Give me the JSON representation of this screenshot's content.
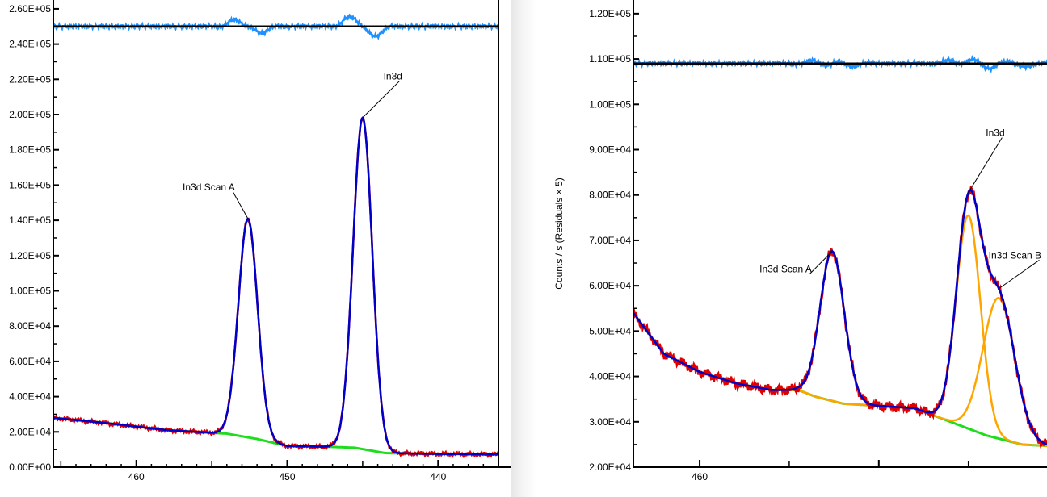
{
  "chart_data": [
    {
      "type": "line",
      "title": "",
      "xlabel": "",
      "ylabel": "",
      "x_reversed": true,
      "xlim": [
        465.5,
        436.0
      ],
      "ylim": [
        0,
        265000
      ],
      "residual_zero": 250000,
      "x_ticks": [
        460,
        450,
        440
      ],
      "y_ticks": [
        0,
        20000,
        40000,
        60000,
        80000,
        100000,
        120000,
        140000,
        160000,
        180000,
        200000,
        220000,
        240000,
        260000
      ],
      "y_tick_labels": [
        "0.00E+00",
        "2.00E+04",
        "4.00E+04",
        "6.00E+04",
        "8.00E+04",
        "1.00E+05",
        "1.20E+05",
        "1.40E+05",
        "1.60E+05",
        "1.80E+05",
        "2.00E+05",
        "2.20E+05",
        "2.40E+05",
        "2.60E+05"
      ],
      "colors": {
        "envelope": "#0000c8",
        "raw": "#e00000",
        "background": "#1fdc1f",
        "residual": "#1e90ff",
        "baseline": "#000000"
      },
      "background": [
        [
          465.5,
          28000
        ],
        [
          462,
          25000
        ],
        [
          458,
          21000
        ],
        [
          455,
          19500
        ],
        [
          454,
          19000
        ],
        [
          452,
          16000
        ],
        [
          450,
          12000
        ],
        [
          447,
          11500
        ],
        [
          445.5,
          11000
        ],
        [
          443.5,
          8000
        ],
        [
          440,
          7500
        ],
        [
          436,
          7200
        ]
      ],
      "peaks": [
        {
          "label": "In3d Scan A",
          "center": 452.6,
          "height": 124000,
          "fwhm": 1.5,
          "label_x": 455.2,
          "label_y": 157000
        },
        {
          "label": "In3d",
          "center": 445.0,
          "height": 188000,
          "fwhm": 1.5,
          "label_x": 443.0,
          "label_y": 220000
        }
      ]
    },
    {
      "type": "line",
      "title": "",
      "xlabel": "",
      "ylabel": "Counts / s  (Residuals × 5)",
      "x_reversed": true,
      "xlim": [
        463.7,
        439.8
      ],
      "ylim": [
        20000,
        123000
      ],
      "residual_zero": 109000,
      "x_ticks": [
        460
      ],
      "y_ticks": [
        20000,
        30000,
        40000,
        50000,
        60000,
        70000,
        80000,
        90000,
        100000,
        110000,
        120000
      ],
      "y_tick_labels": [
        "2.00E+04",
        "3.00E+04",
        "4.00E+04",
        "5.00E+04",
        "6.00E+04",
        "7.00E+04",
        "8.00E+04",
        "9.00E+04",
        "1.00E+05",
        "1.10E+05",
        "1.20E+05"
      ],
      "colors": {
        "envelope": "#0000c8",
        "raw": "#e00000",
        "background": "#1fdc1f",
        "residual": "#1e90ff",
        "baseline": "#000000",
        "component": "#ffa500"
      },
      "background": [
        [
          463.7,
          54000
        ],
        [
          462,
          45000
        ],
        [
          460,
          41000
        ],
        [
          458,
          38500
        ],
        [
          456,
          37000
        ],
        [
          454.5,
          37000
        ],
        [
          453.5,
          35500
        ],
        [
          452,
          34000
        ],
        [
          450,
          33500
        ],
        [
          448,
          33000
        ],
        [
          446,
          30000
        ],
        [
          444,
          27000
        ],
        [
          442,
          25000
        ],
        [
          439.8,
          24500
        ]
      ],
      "peaks": [
        {
          "label": "In3d Scan A",
          "center": 452.6,
          "height": 33000,
          "fwhm": 1.6,
          "label_x": 455.2,
          "label_y": 63000,
          "orange": false
        },
        {
          "label": "In3d",
          "center": 445.0,
          "height": 47000,
          "fwhm": 1.6,
          "label_x": 443.5,
          "label_y": 93000,
          "orange": true
        },
        {
          "label": "In3d Scan B",
          "center": 443.3,
          "height": 31000,
          "fwhm": 2.1,
          "label_x": 442.4,
          "label_y": 66000,
          "orange": true
        }
      ]
    }
  ]
}
